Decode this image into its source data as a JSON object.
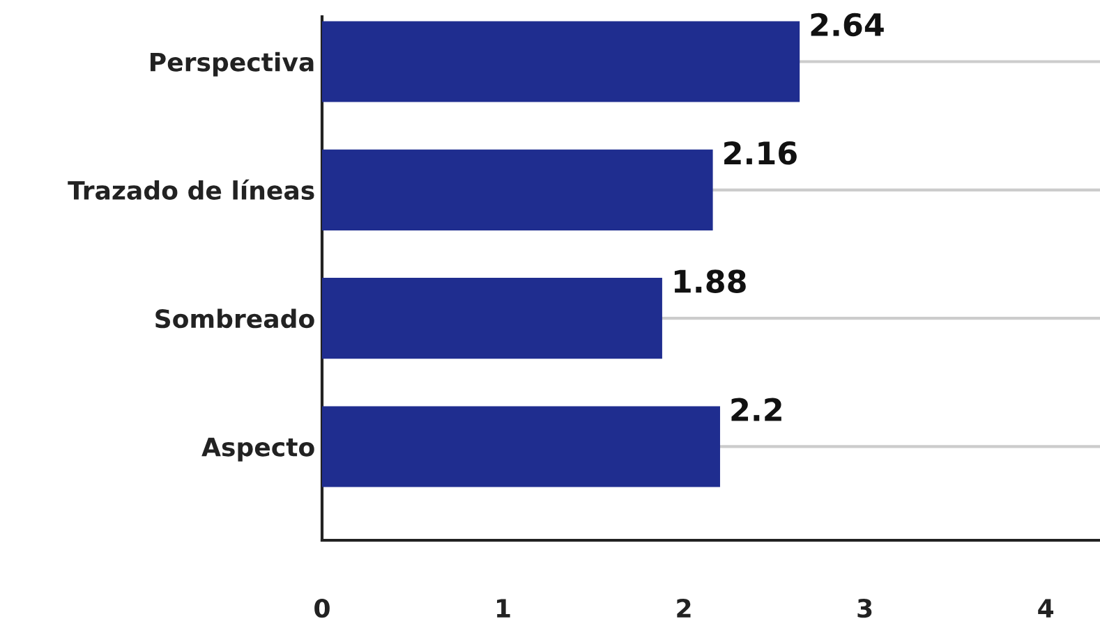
{
  "chart_data": {
    "type": "bar",
    "orientation": "horizontal",
    "categories": [
      "Perspectiva",
      "Trazado de líneas",
      "Sombreado",
      "Aspecto"
    ],
    "values": [
      2.64,
      2.16,
      1.88,
      2.2
    ],
    "color": "#1f2d8f",
    "xlim": [
      0,
      4.3
    ],
    "xticks": [
      0,
      1,
      2,
      3,
      4
    ],
    "grid": "y",
    "data_labels": true
  }
}
